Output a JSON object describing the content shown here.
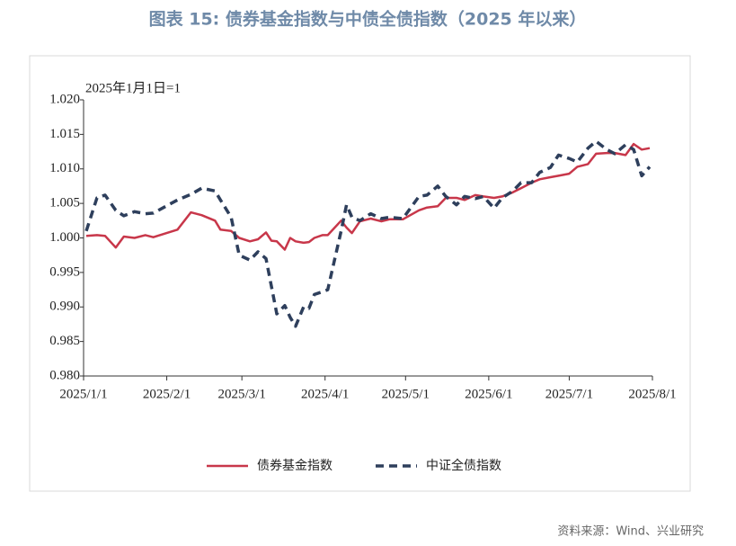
{
  "chart_data": {
    "type": "line",
    "title": "图表 15: 债券基金指数与中债全债指数（2025 年以来）",
    "annotation": "2025年1月1日=1",
    "source": "资料来源：Wind、兴业研究",
    "x": [
      "2025/1/2",
      "2025/1/6",
      "2025/1/9",
      "2025/1/13",
      "2025/1/16",
      "2025/1/20",
      "2025/1/24",
      "2025/1/27",
      "2025/2/5",
      "2025/2/10",
      "2025/2/14",
      "2025/2/19",
      "2025/2/21",
      "2025/2/25",
      "2025/2/28",
      "2025/3/4",
      "2025/3/7",
      "2025/3/10",
      "2025/3/12",
      "2025/3/14",
      "2025/3/17",
      "2025/3/19",
      "2025/3/21",
      "2025/3/24",
      "2025/3/26",
      "2025/3/28",
      "2025/3/31",
      "2025/4/2",
      "2025/4/7",
      "2025/4/9",
      "2025/4/11",
      "2025/4/14",
      "2025/4/18",
      "2025/4/22",
      "2025/4/25",
      "2025/4/30",
      "2025/5/6",
      "2025/5/9",
      "2025/5/13",
      "2025/5/16",
      "2025/5/20",
      "2025/5/23",
      "2025/5/27",
      "2025/5/30",
      "2025/6/3",
      "2025/6/6",
      "2025/6/10",
      "2025/6/13",
      "2025/6/17",
      "2025/6/20",
      "2025/6/24",
      "2025/6/27",
      "2025/7/1",
      "2025/7/4",
      "2025/7/8",
      "2025/7/11",
      "2025/7/15",
      "2025/7/18",
      "2025/7/22",
      "2025/7/25",
      "2025/7/28",
      "2025/7/31"
    ],
    "series": [
      {
        "name": "债券基金指数",
        "color": "#c8374a",
        "dash": false,
        "values": [
          1.0003,
          1.0004,
          1.0003,
          0.9986,
          1.0002,
          1.0,
          1.0004,
          1.0001,
          1.0012,
          1.0037,
          1.0033,
          1.0025,
          1.0012,
          1.001,
          1.0,
          0.9995,
          0.9998,
          1.0008,
          0.9996,
          0.9995,
          0.9983,
          1.0,
          0.9995,
          0.9993,
          0.9994,
          1.0,
          1.0004,
          1.0004,
          1.0025,
          1.0015,
          1.0007,
          1.0024,
          1.0028,
          1.0024,
          1.0027,
          1.0027,
          1.004,
          1.0044,
          1.0046,
          1.0058,
          1.0058,
          1.0055,
          1.0062,
          1.006,
          1.0058,
          1.006,
          1.0066,
          1.0072,
          1.008,
          1.0085,
          1.0088,
          1.009,
          1.0093,
          1.0103,
          1.0107,
          1.0122,
          1.0123,
          1.0123,
          1.012,
          1.0136,
          1.0128,
          1.013
        ]
      },
      {
        "name": "中证全债指数",
        "color": "#2e3f5c",
        "dash": true,
        "values": [
          1.001,
          1.0058,
          1.0062,
          1.004,
          1.0032,
          1.0038,
          1.0035,
          1.0036,
          1.0055,
          1.0063,
          1.0072,
          1.0068,
          1.0055,
          1.003,
          0.9975,
          0.9968,
          0.998,
          0.997,
          0.993,
          0.989,
          0.9902,
          0.9885,
          0.9872,
          0.99,
          0.9898,
          0.9918,
          0.9922,
          0.9925,
          1.001,
          1.0048,
          1.003,
          1.0025,
          1.0035,
          1.0028,
          1.003,
          1.0028,
          1.006,
          1.0062,
          1.0075,
          1.006,
          1.0048,
          1.006,
          1.0057,
          1.006,
          1.0043,
          1.0058,
          1.0068,
          1.008,
          1.008,
          1.0095,
          1.0102,
          1.012,
          1.0115,
          1.011,
          1.013,
          1.014,
          1.0128,
          1.0122,
          1.0135,
          1.0128,
          1.009,
          1.0103
        ]
      }
    ],
    "xlim": [
      "2025/1/1",
      "2025/8/1"
    ],
    "xticks": [
      "2025/1/1",
      "2025/2/1",
      "2025/3/1",
      "2025/4/1",
      "2025/5/1",
      "2025/6/1",
      "2025/7/1",
      "2025/8/1"
    ],
    "ylim": [
      0.98,
      1.02
    ],
    "yticks": [
      {
        "value": 0.98,
        "label": "0.980"
      },
      {
        "value": 0.985,
        "label": "0.985"
      },
      {
        "value": 0.99,
        "label": "0.990"
      },
      {
        "value": 0.995,
        "label": "0.995"
      },
      {
        "value": 1.0,
        "label": "1.000"
      },
      {
        "value": 1.005,
        "label": "1.005"
      },
      {
        "value": 1.01,
        "label": "1.010"
      },
      {
        "value": 1.015,
        "label": "1.015"
      },
      {
        "value": 1.02,
        "label": "1.020"
      }
    ],
    "legend": "bottom"
  }
}
